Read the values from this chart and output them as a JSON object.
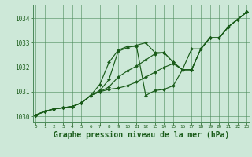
{
  "background_color": "#cde8d8",
  "grid_color": "#4a8a5a",
  "line_color": "#1a5c1a",
  "marker_color": "#1a5c1a",
  "xlabel": "Graphe pression niveau de la mer (hPa)",
  "xlabel_fontsize": 7.0,
  "xlim": [
    -0.3,
    23.3
  ],
  "ylim": [
    1029.75,
    1034.55
  ],
  "yticks": [
    1030,
    1031,
    1032,
    1033,
    1034
  ],
  "xticks": [
    0,
    1,
    2,
    3,
    4,
    5,
    6,
    7,
    8,
    9,
    10,
    11,
    12,
    13,
    14,
    15,
    16,
    17,
    18,
    19,
    20,
    21,
    22,
    23
  ],
  "series": [
    [
      1030.05,
      1030.2,
      1030.3,
      1030.35,
      1030.4,
      1030.55,
      1030.85,
      1031.0,
      1031.1,
      1031.15,
      1031.25,
      1031.4,
      1031.6,
      1031.8,
      1032.0,
      1032.15,
      1031.9,
      1031.9,
      1032.75,
      1033.2,
      1033.2,
      1033.65,
      1033.95,
      1034.25
    ],
    [
      1030.05,
      1030.2,
      1030.3,
      1030.35,
      1030.4,
      1030.55,
      1030.85,
      1031.0,
      1031.2,
      1031.6,
      1031.85,
      1032.05,
      1032.3,
      1032.55,
      1032.6,
      1032.2,
      1031.9,
      1031.9,
      1032.75,
      1033.2,
      1033.2,
      1033.65,
      1033.95,
      1034.25
    ],
    [
      1030.05,
      1030.2,
      1030.3,
      1030.35,
      1030.4,
      1030.55,
      1030.85,
      1031.05,
      1031.5,
      1032.65,
      1032.8,
      1032.9,
      1033.0,
      1032.6,
      1032.6,
      1032.2,
      1031.9,
      1031.9,
      1032.75,
      1033.2,
      1033.2,
      1033.65,
      1033.95,
      1034.25
    ],
    [
      1030.05,
      1030.2,
      1030.3,
      1030.35,
      1030.4,
      1030.55,
      1030.85,
      1031.3,
      1032.2,
      1032.7,
      1032.85,
      1032.85,
      1030.85,
      1031.05,
      1031.1,
      1031.25,
      1031.9,
      1032.75,
      1032.75,
      1033.2,
      1033.2,
      1033.65,
      1033.95,
      1034.25
    ]
  ]
}
